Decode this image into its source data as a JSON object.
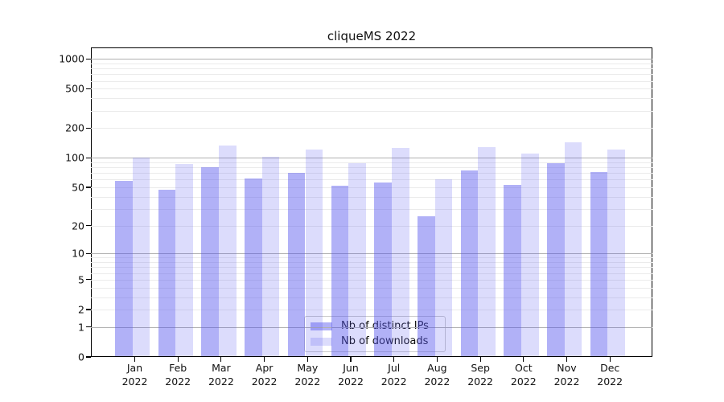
{
  "title": "cliqueMS 2022",
  "chart_data": {
    "type": "bar",
    "title": "cliqueMS 2022",
    "scale": "log1p",
    "grid": "on",
    "legend_position": "lower center",
    "categories": [
      "Jan",
      "Feb",
      "Mar",
      "Apr",
      "May",
      "Jun",
      "Jul",
      "Aug",
      "Sep",
      "Oct",
      "Nov",
      "Dec"
    ],
    "year_label": "2022",
    "series": [
      {
        "name": "Nb of distinct IPs",
        "color": "rgba(82,82,238,0.45)",
        "solid_hex": "#ababf4",
        "values": [
          58,
          47,
          80,
          62,
          71,
          52,
          56,
          25,
          75,
          53,
          88,
          72
        ]
      },
      {
        "name": "Nb of downloads",
        "color": "rgba(82,82,238,0.20)",
        "solid_hex": "#dcdcf9",
        "values": [
          100,
          87,
          134,
          102,
          121,
          89,
          127,
          61,
          128,
          110,
          143,
          122
        ]
      }
    ],
    "yticks": [
      0,
      1,
      2,
      5,
      10,
      20,
      50,
      100,
      200,
      500,
      1000
    ],
    "ylim": [
      0,
      1400
    ],
    "major_grid_values": [
      1,
      10,
      100,
      1000
    ],
    "major_grid_color": "#b0b0b0",
    "minor_grid_color": "#ebebeb"
  }
}
